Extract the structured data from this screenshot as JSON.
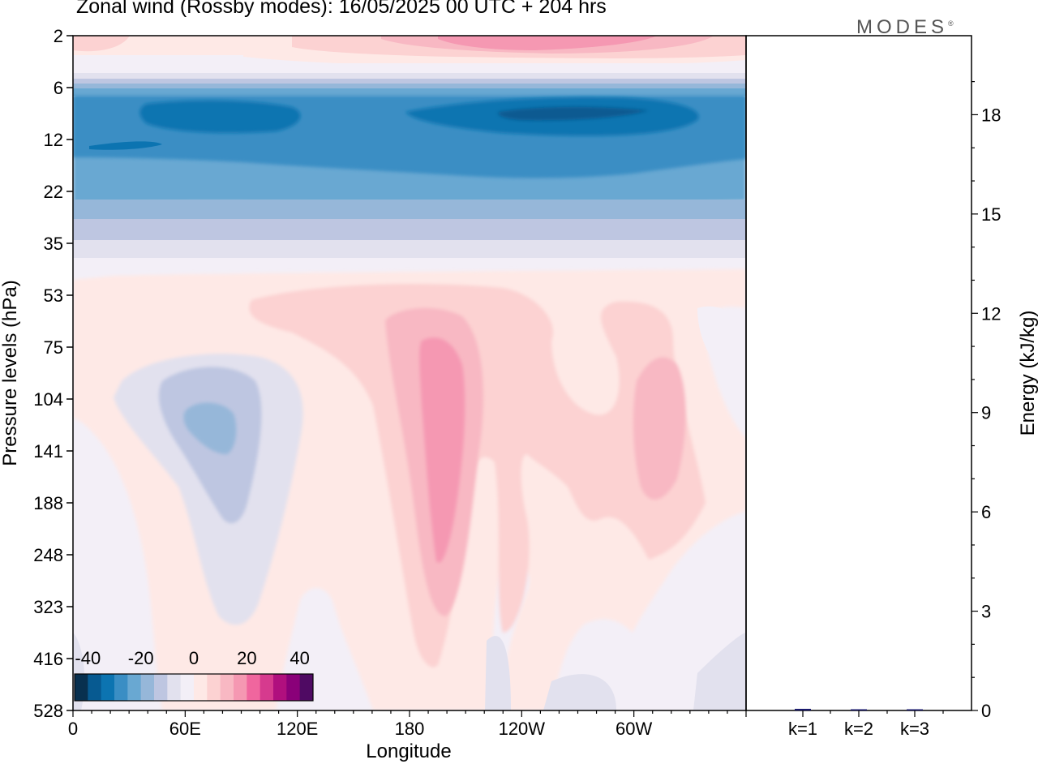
{
  "title": "Zonal wind (Rossby modes):  16/05/2025  00 UTC  + 204 hrs",
  "brand": "MODES",
  "brand_mark": "®",
  "chart_data": [
    {
      "type": "heatmap",
      "title": "Zonal wind (Rossby modes):  16/05/2025  00 UTC  + 204 hrs",
      "xlabel": "Longitude",
      "ylabel": "Pressure levels (hPa)",
      "x_ticks": [
        "0",
        "60E",
        "120E",
        "180",
        "120W",
        "60W"
      ],
      "x_tick_values_deg": [
        0,
        60,
        120,
        180,
        240,
        300
      ],
      "xlim": [
        0,
        360
      ],
      "y_ticks": [
        "2",
        "6",
        "12",
        "22",
        "35",
        "53",
        "75",
        "104",
        "141",
        "188",
        "248",
        "323",
        "416",
        "528"
      ],
      "y_scale": "pressure levels, top = 2 hPa, bottom = 528 hPa",
      "colorbar": {
        "tick_labels": [
          "-40",
          "-20",
          "0",
          "20",
          "40"
        ],
        "range": [
          -45,
          45
        ],
        "step": 5,
        "colors": [
          "#08304f",
          "#075a91",
          "#0c74b1",
          "#3a8ec4",
          "#69a8d2",
          "#96b7d9",
          "#bec6e1",
          "#e2e1ee",
          "#f3eff7",
          "#fee9e6",
          "#fcd2d2",
          "#f8b8c3",
          "#f598b2",
          "#f0669e",
          "#d63a8e",
          "#b00f7e",
          "#8a0079",
          "#4f0a63"
        ]
      },
      "field": [
        {
          "feature": "upper positive band",
          "level_range_hPa": [
            2,
            4
          ],
          "lon_range_deg": [
            200,
            340
          ],
          "value": 20
        },
        {
          "feature": "stratospheric easterly jet",
          "level_range_hPa": [
            6,
            30
          ],
          "value_range": [
            -10,
            -40
          ],
          "core": {
            "lon_deg": 250,
            "level_hPa": 9,
            "value": -40
          }
        },
        {
          "feature": "negative anomaly",
          "lon_deg": 70,
          "level_hPa": 104,
          "value": -15
        },
        {
          "feature": "positive anomaly",
          "lon_deg": 190,
          "level_hPa": 120,
          "value": 20
        },
        {
          "feature": "positive anomaly",
          "lon_deg": 315,
          "level_hPa": 141,
          "value": 15
        }
      ]
    },
    {
      "type": "bar",
      "categories": [
        "k=1",
        "k=2",
        "k=3"
      ],
      "values": [
        0.05,
        0.03,
        0.02
      ],
      "ylabel": "Energy (kJ/kg)",
      "ylim": [
        0,
        20
      ],
      "y_ticks": [
        "0",
        "3",
        "6",
        "9",
        "12",
        "15",
        "18"
      ],
      "bar_color": "#1a1a6e"
    }
  ]
}
